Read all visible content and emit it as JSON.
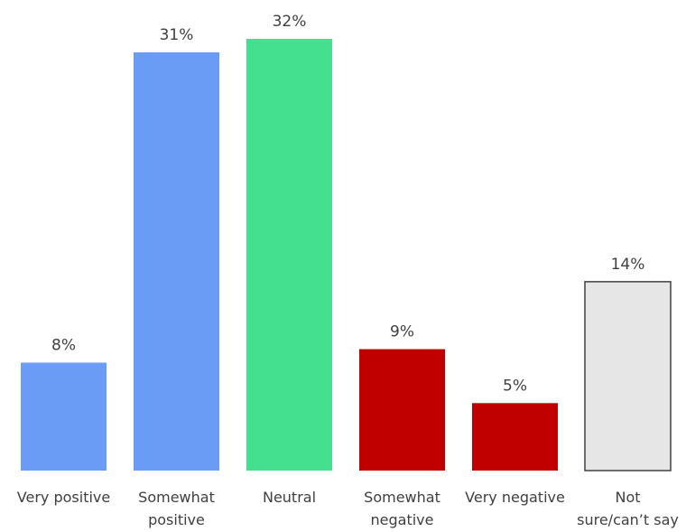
{
  "chart_data": {
    "type": "bar",
    "categories": [
      [
        "Very positive"
      ],
      [
        "Somewhat",
        "positive"
      ],
      [
        "Neutral"
      ],
      [
        "Somewhat",
        "negative"
      ],
      [
        "Very negative"
      ],
      [
        "Not",
        "sure/can’t say"
      ]
    ],
    "values": [
      8,
      31,
      32,
      9,
      5,
      14
    ],
    "value_labels": [
      "8%",
      "31%",
      "32%",
      "9%",
      "5%",
      "14%"
    ],
    "colors": [
      "#6a9cf5",
      "#6a9cf5",
      "#45e08f",
      "#c00000",
      "#c00000",
      "#e6e6e6"
    ],
    "outline_colors": [
      null,
      null,
      null,
      null,
      null,
      "#404040"
    ],
    "ylim": [
      0,
      32
    ],
    "grid": false,
    "legend": "none",
    "title": "",
    "xlabel": "",
    "ylabel": ""
  }
}
